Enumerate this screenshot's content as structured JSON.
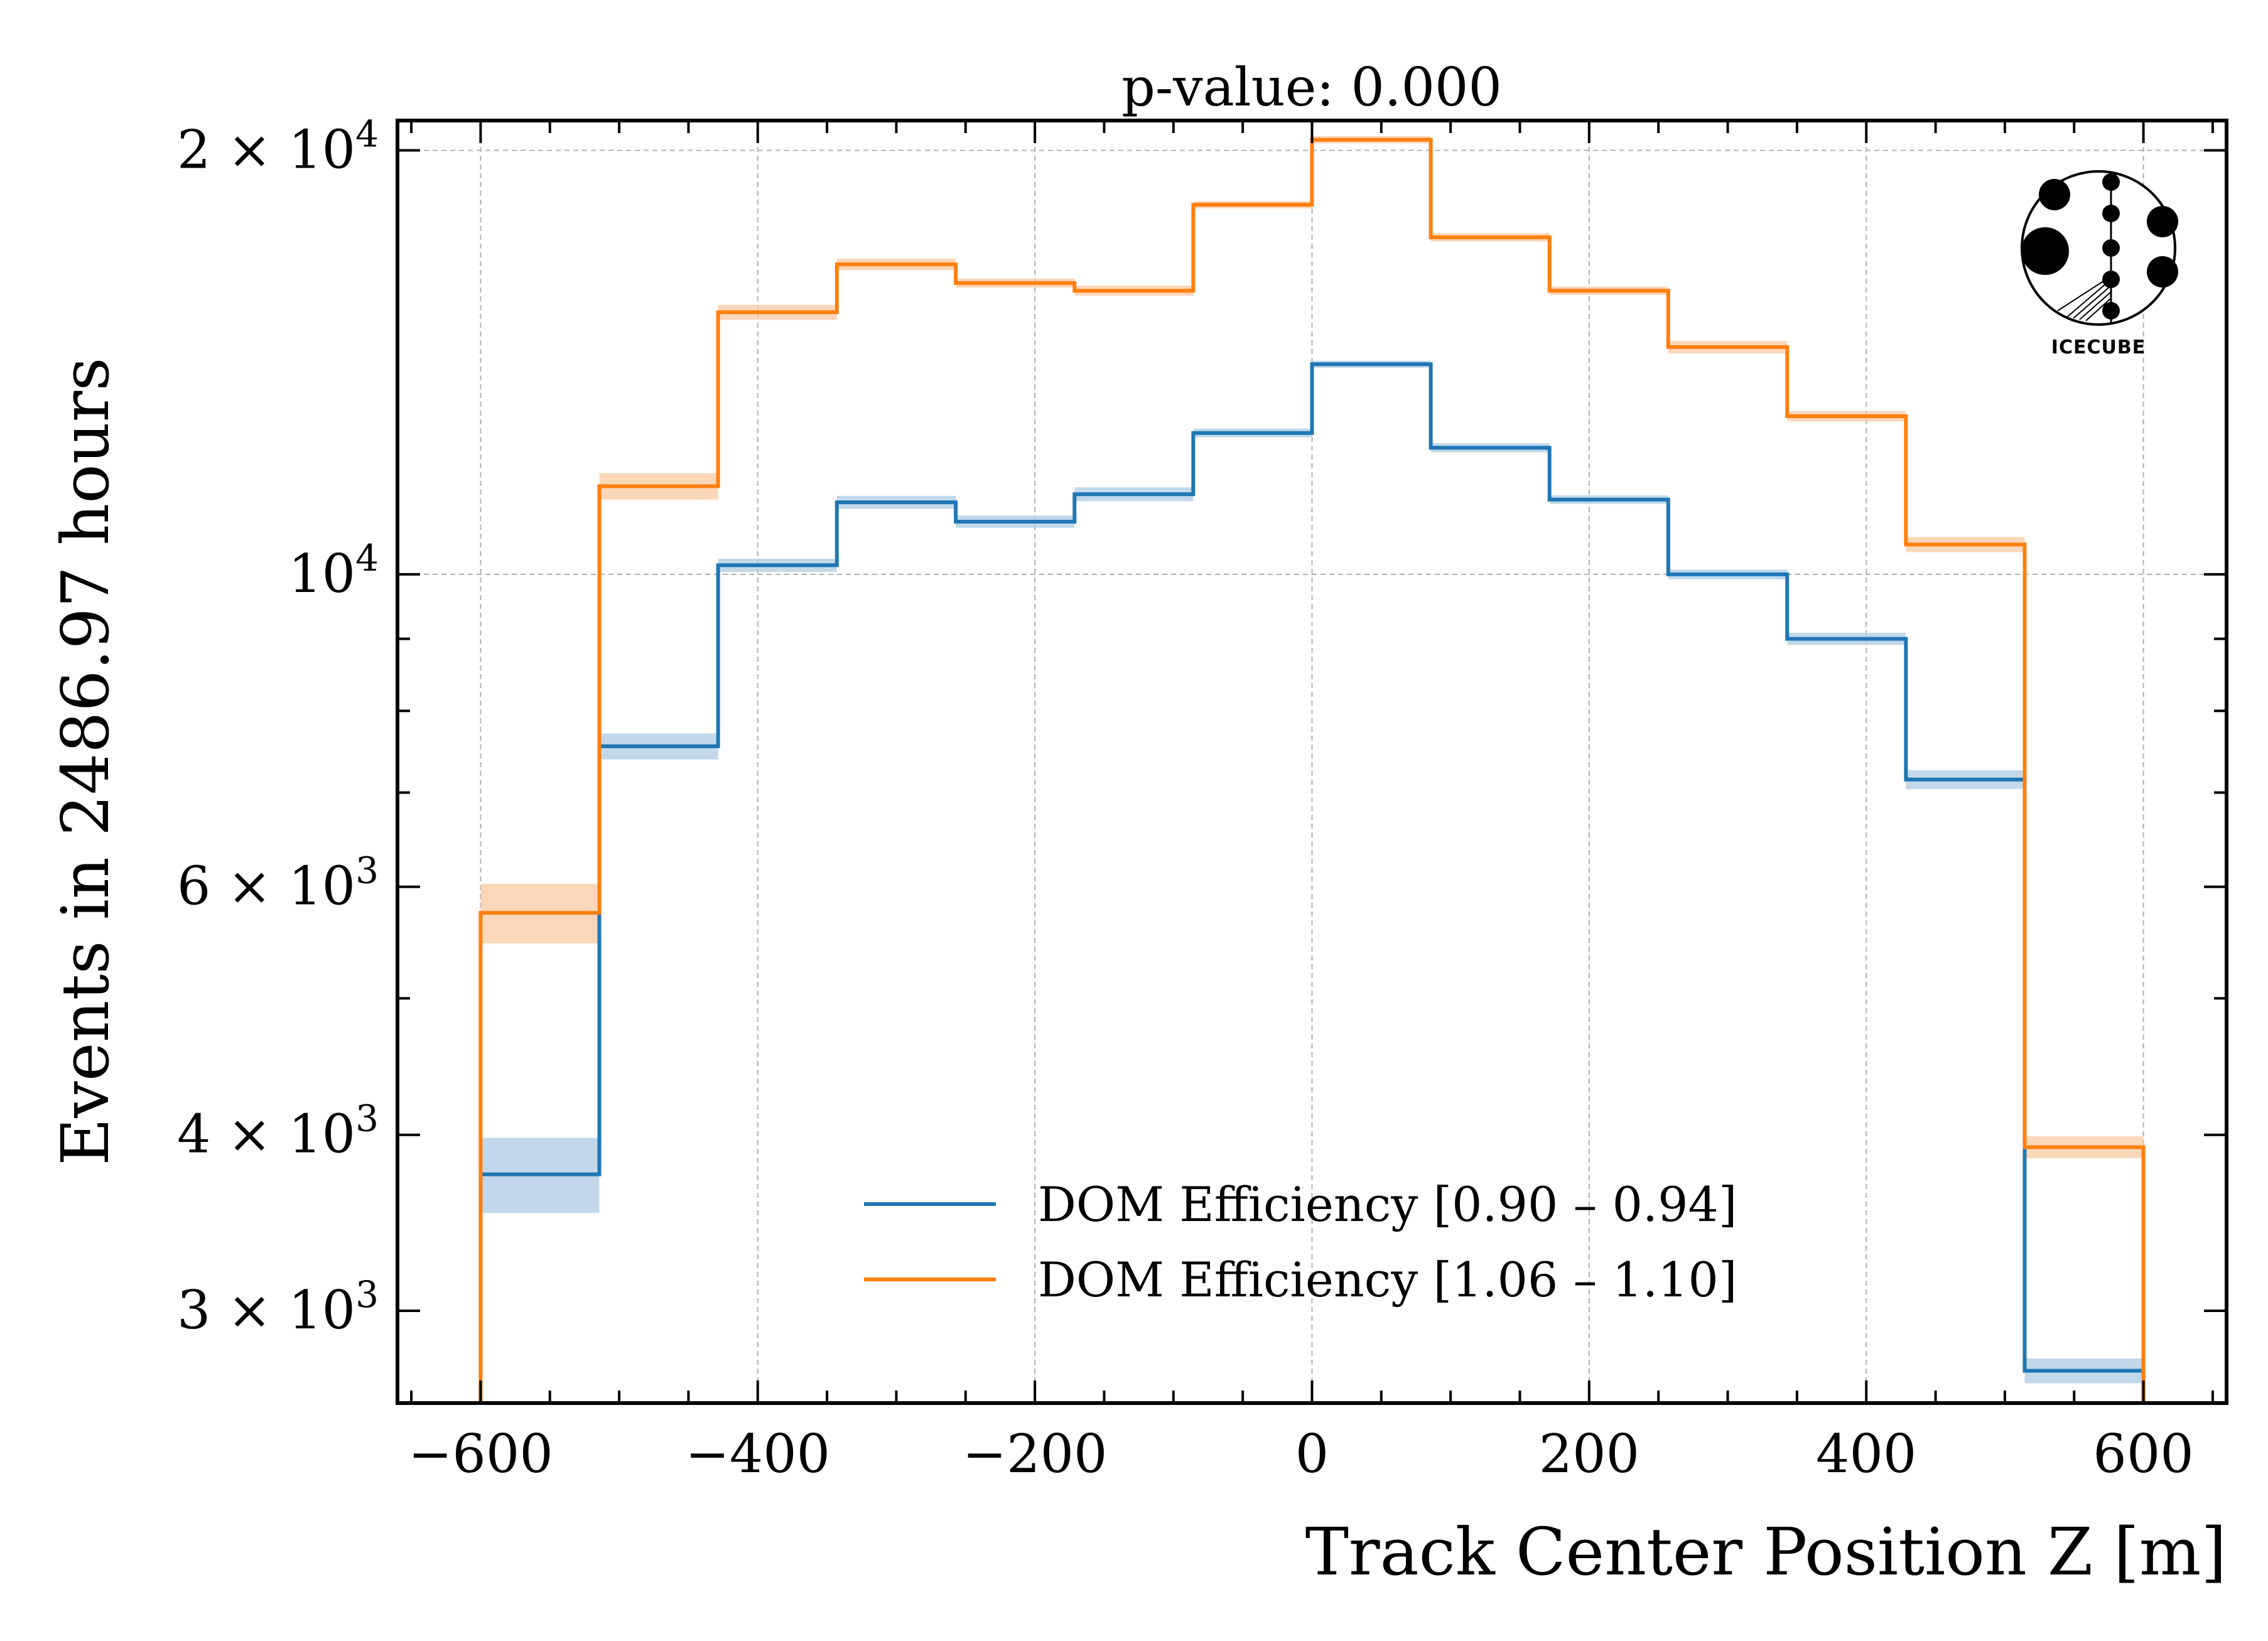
{
  "chart_data": {
    "type": "line",
    "subtype": "step-histogram",
    "title": "p-value:  0.000",
    "xlabel": "Track Center Position Z [m]",
    "ylabel": "Events in 2486.97 hours",
    "xlim": [
      -660,
      660
    ],
    "ylim": [
      2580,
      21000
    ],
    "yscale": "log",
    "grid": true,
    "legend_position": "lower-center",
    "xticks": [
      -600,
      -400,
      -200,
      0,
      200,
      400,
      600
    ],
    "xtick_labels": [
      "−600",
      "−400",
      "−200",
      "0",
      "200",
      "400",
      "600"
    ],
    "yticks": [
      3000,
      4000,
      6000,
      10000,
      20000
    ],
    "ytick_labels": [
      {
        "base": "3 × 10",
        "exp": "3"
      },
      {
        "base": "4 × 10",
        "exp": "3"
      },
      {
        "base": "6 × 10",
        "exp": "3"
      },
      {
        "base": "10",
        "exp": "4"
      },
      {
        "base": "2 × 10",
        "exp": "4"
      }
    ],
    "bin_edges": [
      -600,
      -514.3,
      -428.6,
      -342.9,
      -257.1,
      -171.4,
      -85.7,
      0,
      85.7,
      171.4,
      257.1,
      342.9,
      428.6,
      514.3,
      600
    ],
    "series": [
      {
        "name": "DOM Efficiency [0.90 – 0.94]",
        "color": "#1f77b4",
        "band_color": "#aecbe3",
        "values": [
          3750,
          7550,
          10150,
          11250,
          10900,
          11400,
          12600,
          14100,
          12300,
          11300,
          10000,
          9000,
          7150,
          2720
        ],
        "errors": [
          230,
          160,
          110,
          120,
          110,
          130,
          90,
          80,
          90,
          80,
          80,
          90,
          110,
          55
        ]
      },
      {
        "name": "DOM Efficiency [1.06 – 1.10]",
        "color": "#ff7f0e",
        "band_color": "#f9c9a3",
        "values": [
          5750,
          11550,
          15350,
          16600,
          16100,
          15900,
          18300,
          20350,
          17350,
          15900,
          14500,
          12950,
          10500,
          3920
        ],
        "errors": [
          280,
          250,
          190,
          160,
          120,
          130,
          110,
          120,
          120,
          110,
          150,
          110,
          130,
          70
        ]
      }
    ]
  },
  "logo": {
    "name": "IceCube logo",
    "text": "ICECUBE"
  }
}
